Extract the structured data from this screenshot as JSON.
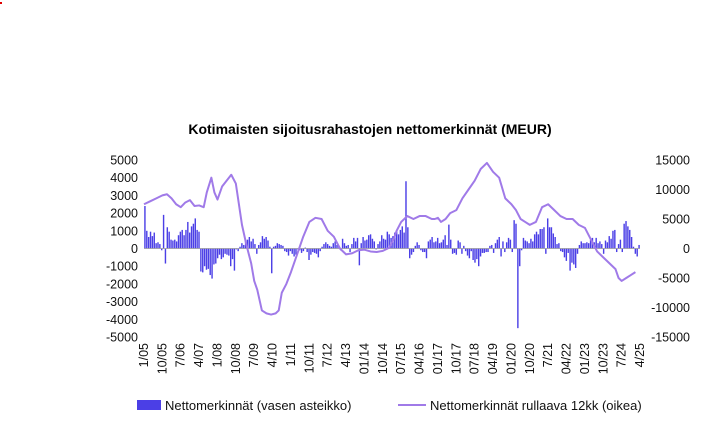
{
  "chart_data": {
    "type": "bar+line",
    "title": "Kotimaisten sijoitusrahastojen nettomerkinnät (MEUR)",
    "x_tick_labels": [
      "1/05",
      "10/05",
      "7/06",
      "4/07",
      "1/08",
      "10/08",
      "7/09",
      "4/10",
      "1/11",
      "10/11",
      "7/12",
      "4/13",
      "01/14",
      "10/14",
      "07/15",
      "04/16",
      "01/17",
      "10/17",
      "07/18",
      "04/19",
      "01/20",
      "10/20",
      "7/21",
      "04/22",
      "01/23",
      "10/23",
      "7/24",
      "4/25"
    ],
    "left_axis": {
      "range": [
        -5000,
        5000
      ],
      "ticks": [
        "5000",
        "4000",
        "3000",
        "2000",
        "1000",
        "0",
        "-1000",
        "-2000",
        "-3000",
        "-4000",
        "-5000"
      ]
    },
    "right_axis": {
      "range": [
        -15000,
        15000
      ],
      "ticks": [
        "15000",
        "10000",
        "5000",
        "0",
        "-5000",
        "-10000",
        "-15000"
      ]
    },
    "series": [
      {
        "name": "Nettomerkinnät (vasen asteikko)",
        "kind": "bar",
        "axis": "left",
        "color": "#4b3fe6",
        "values": [
          2400,
          1000,
          650,
          950,
          700,
          900,
          300,
          350,
          250,
          -100,
          1900,
          -850,
          1200,
          950,
          500,
          450,
          500,
          400,
          750,
          950,
          1050,
          750,
          1050,
          1500,
          900,
          1250,
          1400,
          1700,
          1050,
          950,
          -1300,
          -1350,
          -1000,
          -1200,
          -1150,
          -1500,
          -1700,
          -900,
          -850,
          -550,
          -350,
          -600,
          -500,
          -300,
          -350,
          -400,
          -1000,
          -600,
          -1250,
          -50,
          -150,
          100,
          300,
          200,
          450,
          500,
          650,
          400,
          550,
          250,
          -300,
          200,
          350,
          700,
          550,
          650,
          450,
          100,
          -1400,
          100,
          150,
          300,
          250,
          200,
          150,
          -150,
          -200,
          -400,
          -150,
          -300,
          -450,
          -350,
          -50,
          -100,
          -250,
          -150,
          50,
          -200,
          -650,
          -350,
          -200,
          -250,
          -300,
          -500,
          -150,
          100,
          250,
          350,
          250,
          150,
          100,
          300,
          400,
          200,
          150,
          -100,
          550,
          300,
          150,
          200,
          -200,
          250,
          600,
          400,
          600,
          -950,
          300,
          650,
          450,
          500,
          750,
          800,
          550,
          400,
          -50,
          250,
          400,
          750,
          550,
          500,
          950,
          800,
          600,
          700,
          900,
          1000,
          800,
          1050,
          1250,
          900,
          3800,
          1200,
          -550,
          -350,
          -200,
          150,
          350,
          200,
          -100,
          -200,
          -200,
          -550,
          400,
          500,
          650,
          350,
          400,
          600,
          300,
          350,
          500,
          750,
          200,
          1350,
          500,
          -300,
          -250,
          -350,
          450,
          350,
          -300,
          150,
          -150,
          -400,
          -550,
          -150,
          -650,
          -800,
          -600,
          -1000,
          -450,
          -250,
          -250,
          -200,
          -200,
          150,
          200,
          -250,
          300,
          500,
          650,
          -450,
          400,
          -200,
          350,
          600,
          500,
          -200,
          1600,
          1400,
          -4500,
          -1000,
          -100,
          600,
          450,
          400,
          300,
          550,
          400,
          800,
          950,
          800,
          1100,
          1100,
          1200,
          -300,
          1700,
          1200,
          1200,
          850,
          650,
          250,
          300,
          -150,
          -200,
          -500,
          -700,
          -250,
          -1250,
          -800,
          -900,
          -1100,
          -300,
          200,
          400,
          300,
          300,
          350,
          300,
          500,
          600,
          350,
          600,
          300,
          400,
          250,
          -300,
          450,
          350,
          700,
          550,
          1000,
          1050,
          -200,
          250,
          500,
          -200,
          1400,
          1550,
          1250,
          1050,
          650,
          100,
          -300,
          -450,
          200
        ]
      },
      {
        "name": "Nettomerkinnät rullaava 12kk (oikea)",
        "kind": "line",
        "axis": "right",
        "color": "#a07ae8",
        "x": [
          0,
          4,
          8,
          12,
          15,
          18,
          21,
          24,
          27,
          30,
          33,
          36,
          39,
          41,
          44,
          46,
          48,
          51,
          54,
          57,
          60,
          64,
          67,
          70,
          72,
          74,
          77,
          80,
          83,
          86,
          88,
          90,
          93,
          96,
          100,
          104,
          108,
          112,
          116,
          120,
          124,
          128,
          132,
          136,
          140,
          144,
          148,
          152,
          156,
          160,
          163,
          165,
          168,
          172,
          176,
          180,
          184,
          188,
          190,
          192,
          194,
          197,
          200,
          204,
          208,
          212,
          216,
          220,
          224,
          228,
          232,
          236,
          240,
          243,
          246,
          249,
          252,
          256,
          260,
          264,
          268,
          272,
          276,
          280,
          284,
          288,
          292,
          296,
          300,
          304,
          308,
          310,
          312,
          315,
          318,
          321
        ],
        "y": [
          7500,
          8000,
          8500,
          9000,
          9200,
          8500,
          7500,
          7000,
          7800,
          8200,
          7200,
          7300,
          7000,
          9500,
          12000,
          9500,
          8300,
          10500,
          11500,
          12500,
          11000,
          4000,
          500,
          -2500,
          -5500,
          -7000,
          -10500,
          -11000,
          -11200,
          -11000,
          -10500,
          -7500,
          -6000,
          -4000,
          -1000,
          2000,
          4500,
          5200,
          5000,
          3000,
          2000,
          0,
          -1000,
          -800,
          -300,
          -200,
          -500,
          -600,
          -400,
          100,
          1500,
          3000,
          4500,
          5500,
          5000,
          5500,
          5500,
          5000,
          5000,
          5200,
          4500,
          5000,
          6000,
          6500,
          8500,
          10000,
          11500,
          13500,
          14500,
          13000,
          12000,
          8500,
          7500,
          6500,
          5000,
          4500,
          4000,
          4500,
          7000,
          7500,
          6500,
          5500,
          5000,
          5000,
          4000,
          3500,
          1500,
          -500,
          -1500,
          -2500,
          -3500,
          -5000,
          -5500,
          -5000,
          -4500,
          -4000
        ]
      }
    ]
  },
  "legend": {
    "bars_label": "Nettomerkinnät (vasen asteikko)",
    "line_label": "Nettomerkinnät rullaava 12kk (oikea)"
  }
}
